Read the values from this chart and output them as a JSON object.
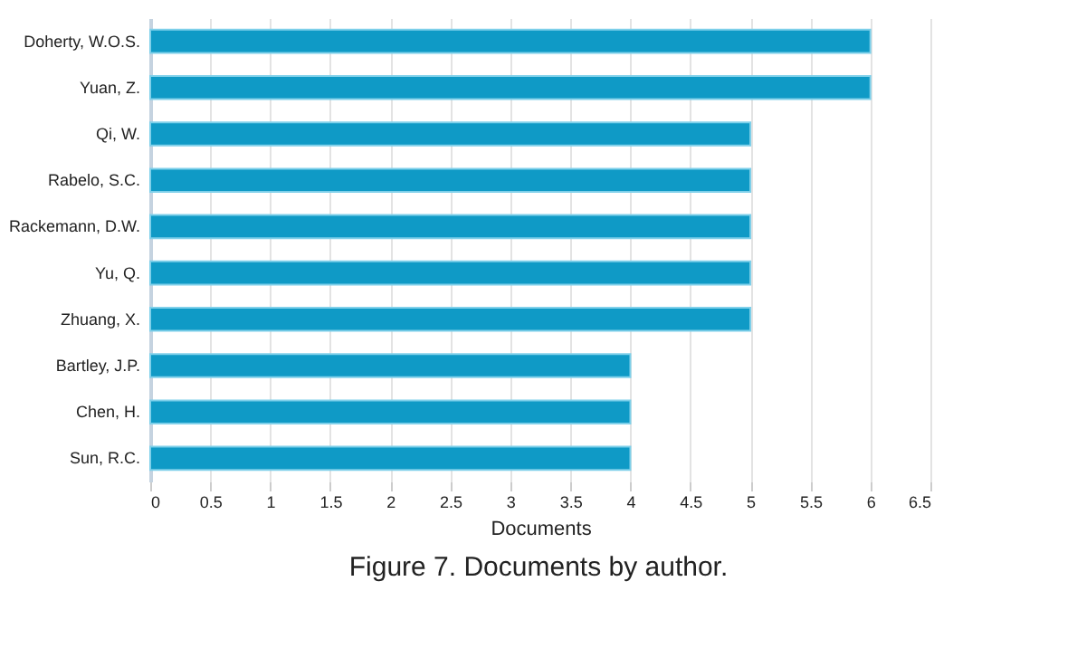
{
  "chart_data": {
    "type": "bar",
    "orientation": "horizontal",
    "xlabel": "Documents",
    "categories": [
      "Doherty, W.O.S.",
      "Yuan, Z.",
      "Qi, W.",
      "Rabelo, S.C.",
      "Rackemann, D.W.",
      "Yu, Q.",
      "Zhuang, X.",
      "Bartley, J.P.",
      "Chen, H.",
      "Sun, R.C."
    ],
    "values": [
      6,
      6,
      5,
      5,
      5,
      5,
      5,
      4,
      4,
      4
    ],
    "color": "#0f9ac6",
    "xlim": [
      0,
      6.5
    ],
    "xticks": [
      0,
      0.5,
      1,
      1.5,
      2,
      2.5,
      3,
      3.5,
      4,
      4.5,
      5,
      5.5,
      6,
      6.5
    ],
    "grid": "x",
    "annotations": [
      "Figure 7. Documents by author."
    ]
  }
}
